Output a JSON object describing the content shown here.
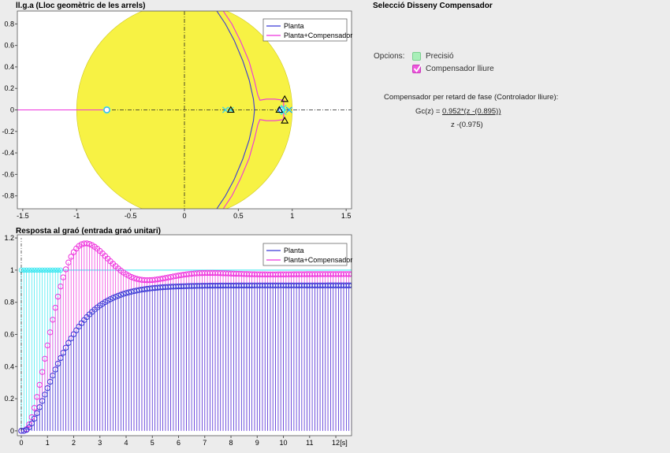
{
  "plots": {
    "rlocus_title": "ll.g.a (Lloc geomètric de les arrels)",
    "step_title": "Resposta al graó (entrada graó unitari)"
  },
  "legend": {
    "planta": "Planta",
    "planta_comp": "Planta+Compensador"
  },
  "panel": {
    "title": "Selecció Disseny Compensador",
    "options_label": "Opcions:",
    "opt_precisio": "Precisió",
    "opt_lliure": "Compensador lliure",
    "comp_heading": "Compensador per retard de fase (Controlador lliure):",
    "gc_prefix": "Gc(z) = ",
    "gc_numerator": "0.952*(z -(0.895))",
    "gc_denominator": "z -(0.975)"
  },
  "colors": {
    "planta": "#3a3ad6",
    "planta_comp": "#ee33dd",
    "unit_disk": "#f7f244",
    "reference": "#33e6f0"
  },
  "chart_data": [
    {
      "type": "scatter",
      "title": "ll.g.a (Lloc geomètric de les arrels)",
      "xlim": [
        -1.55,
        1.55
      ],
      "ylim": [
        -0.92,
        0.92
      ],
      "xticks": [
        -1.5,
        -1,
        -0.5,
        0,
        0.5,
        1,
        1.5
      ],
      "yticks": [
        -0.8,
        -0.6,
        -0.4,
        -0.2,
        0,
        0.2,
        0.4,
        0.6,
        0.8
      ],
      "unit_circle": true,
      "legend_position": "top-right",
      "poles_planta": [
        [
          0.38,
          0
        ],
        [
          0.97,
          0
        ]
      ],
      "zeros_planta": [
        [
          -0.72,
          0
        ],
        [
          0.9,
          0
        ]
      ],
      "poles_comp": [
        [
          0.38,
          0
        ],
        [
          0.975,
          0
        ],
        [
          0.43,
          0
        ],
        [
          0.92,
          0.02
        ],
        [
          0.92,
          -0.02
        ]
      ],
      "zeros_comp": [
        [
          0.895,
          0
        ],
        [
          -0.72,
          0
        ]
      ],
      "series": [
        {
          "name": "Planta",
          "x": [
            0.3,
            0.38,
            0.46,
            0.54,
            0.6,
            0.64,
            0.65,
            0.64,
            0.6,
            0.54,
            0.46,
            0.38,
            0.3
          ],
          "y": [
            0.92,
            0.8,
            0.65,
            0.46,
            0.28,
            0.1,
            0,
            -0.1,
            -0.28,
            -0.46,
            -0.65,
            -0.8,
            -0.92
          ]
        },
        {
          "name": "Planta+Compensador",
          "x": [
            0.36,
            0.44,
            0.52,
            0.6,
            0.65,
            0.68,
            0.7,
            0.76,
            0.84,
            0.92,
            0.92,
            0.84,
            0.76,
            0.7,
            0.68,
            0.65,
            0.6,
            0.52,
            0.44,
            0.36
          ],
          "y": [
            0.92,
            0.8,
            0.64,
            0.45,
            0.27,
            0.14,
            0.09,
            0.1,
            0.1,
            0.09,
            -0.09,
            -0.1,
            -0.1,
            -0.09,
            -0.14,
            -0.27,
            -0.45,
            -0.64,
            -0.8,
            -0.92
          ]
        }
      ]
    },
    {
      "type": "line",
      "title": "Resposta al graó (entrada graó unitari)",
      "xlabel": "[s]",
      "xlim": [
        -0.15,
        12.6
      ],
      "ylim": [
        -0.03,
        1.22
      ],
      "xticks": [
        0,
        1,
        2,
        3,
        4,
        5,
        6,
        7,
        8,
        9,
        10,
        11,
        12
      ],
      "yticks": [
        0,
        0.2,
        0.4,
        0.6,
        0.8,
        1,
        1.2
      ],
      "sample_time": 0.1,
      "t_end": 12.6,
      "legend_position": "top-right",
      "reference_value": 1,
      "series": [
        {
          "name": "Planta",
          "final_value": 0.905,
          "wn": 1.2,
          "zeta": 1.0,
          "delay": 0.1
        },
        {
          "name": "Planta+Compensador",
          "final_value": 0.975,
          "wn": 1.5,
          "zeta": 0.46,
          "delay": 0.1
        }
      ]
    }
  ]
}
